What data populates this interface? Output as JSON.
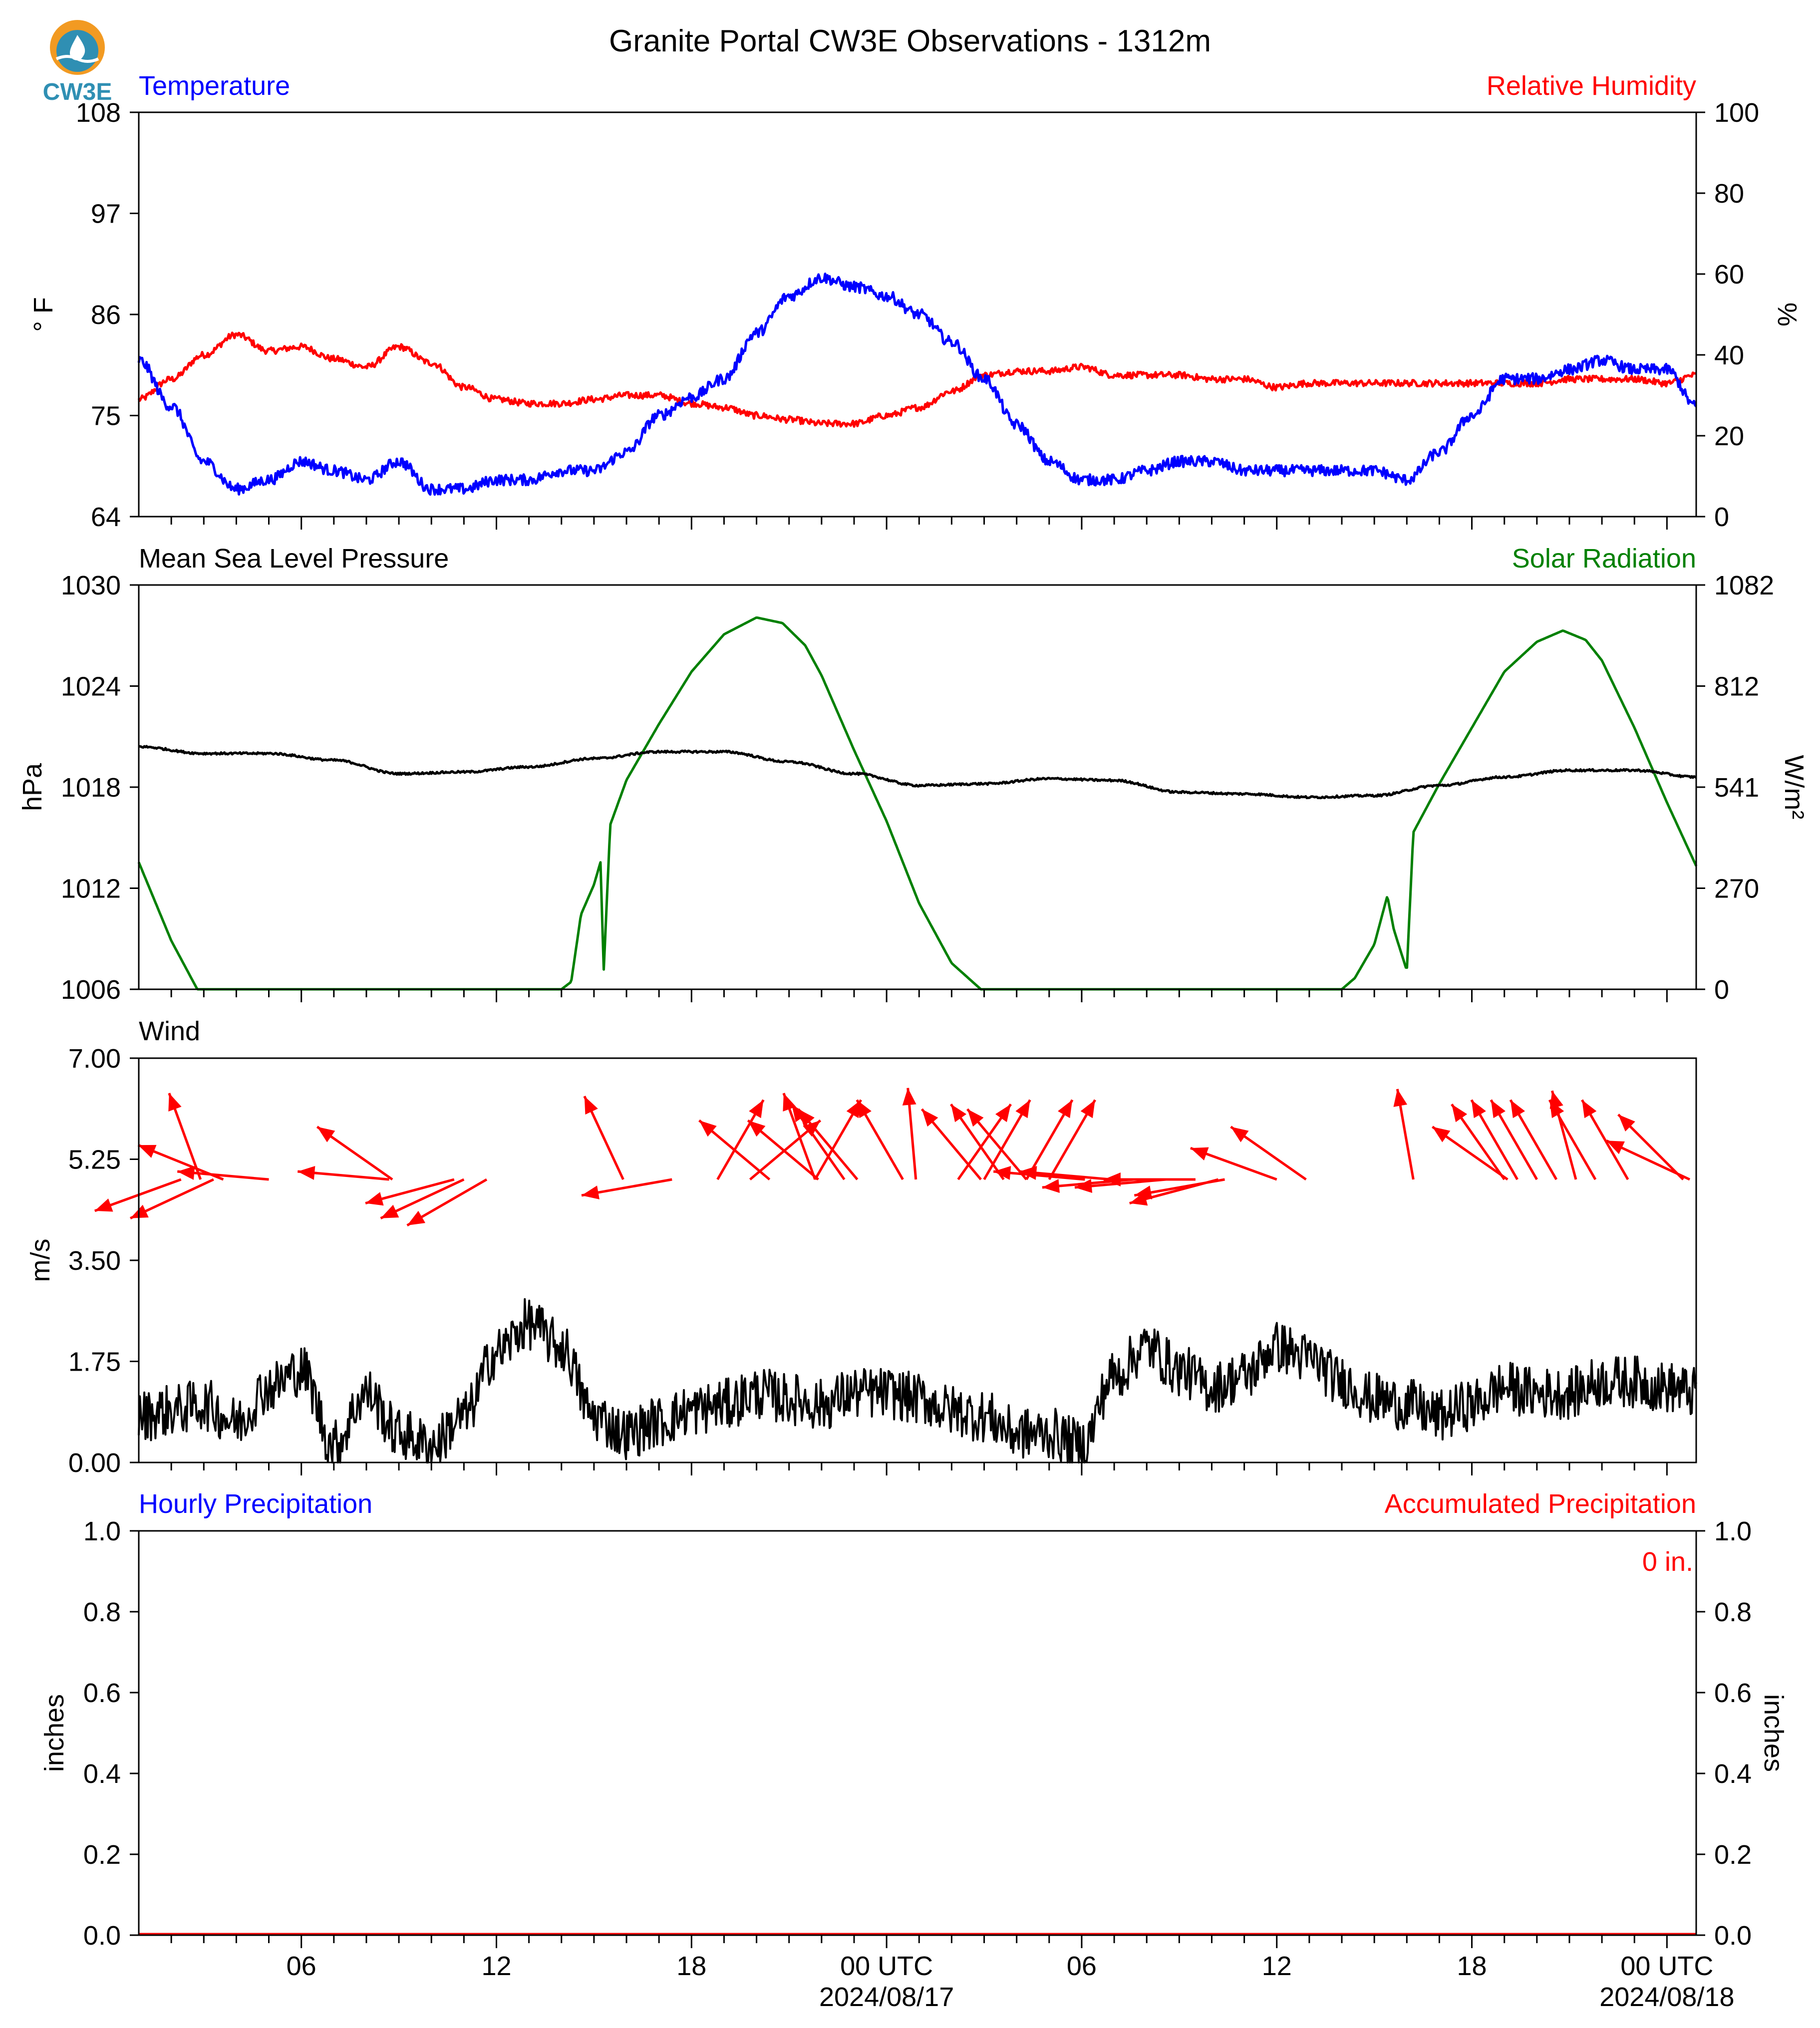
{
  "title": "Granite Portal CW3E Observations - 1312m",
  "logo": {
    "text": "CW3E",
    "color": "#2f8fb3",
    "accent": "#f29a22"
  },
  "colors": {
    "temperature": "#0000ff",
    "humidity": "#ff0000",
    "pressure": "#000000",
    "solar": "#008000",
    "wind": "#ff0000",
    "windspeed": "#000000",
    "accum": "#ff0000"
  },
  "time_axis": {
    "tick_labels": [
      "06",
      "12",
      "18",
      "00 UTC",
      "06",
      "12",
      "18",
      "00 UTC"
    ],
    "tick_hours": [
      6,
      12,
      18,
      24,
      30,
      36,
      42,
      48
    ],
    "date_labels": [
      "2024/08/17",
      "2024/08/18"
    ],
    "range_hours": [
      1,
      48.9
    ]
  },
  "panels": {
    "temp": {
      "left_title": "Temperature",
      "right_title": "Relative Humidity",
      "left_unit": "° F",
      "right_unit": "%",
      "left_ticks": [
        "108",
        "97",
        "86",
        "75",
        "64"
      ],
      "right_ticks": [
        "100",
        "80",
        "60",
        "40",
        "20",
        "0"
      ]
    },
    "pressure": {
      "left_title": "Mean Sea Level Pressure",
      "right_title": "Solar Radiation",
      "left_unit": "hPa",
      "right_unit": "W/m²",
      "left_ticks": [
        "1030",
        "1024",
        "1018",
        "1012",
        "1006"
      ],
      "right_ticks": [
        "1082",
        "812",
        "541",
        "270",
        "0"
      ]
    },
    "wind": {
      "left_title": "Wind",
      "left_unit": "m/s",
      "left_ticks": [
        "7.00",
        "5.25",
        "3.50",
        "1.75",
        "0.00"
      ]
    },
    "precip": {
      "left_title": "Hourly Precipitation",
      "right_title": "Accumulated Precipitation",
      "left_unit": "inches",
      "right_unit": "inches",
      "left_ticks": [
        "1.0",
        "0.8",
        "0.6",
        "0.4",
        "0.2",
        "0.0"
      ],
      "right_ticks": [
        "1.0",
        "0.8",
        "0.6",
        "0.4",
        "0.2",
        "0.0"
      ],
      "total_label": "0 in."
    }
  },
  "chart_data": [
    {
      "type": "line",
      "title": "Temperature",
      "ylabel": "° F",
      "ylim": [
        64,
        108
      ],
      "x": [
        1,
        2,
        3,
        4,
        5,
        6,
        7,
        8,
        9,
        10,
        11,
        12,
        13,
        14,
        15,
        16,
        17,
        18,
        19,
        20,
        21,
        22,
        23,
        24,
        25,
        26,
        27,
        28,
        29,
        30,
        31,
        32,
        33,
        34,
        35,
        36,
        37,
        38,
        39,
        40,
        41,
        42,
        43,
        44,
        45,
        46,
        47,
        48,
        48.9
      ],
      "series": [
        {
          "name": "Temperature",
          "values": [
            81,
            76,
            70,
            67,
            68,
            70,
            69,
            68,
            70,
            67,
            67,
            68,
            68,
            69,
            69,
            71,
            75,
            77,
            79,
            84,
            88,
            90,
            89,
            88,
            86,
            83,
            79,
            74,
            70,
            68,
            68,
            69,
            70,
            70,
            69,
            69,
            69,
            69,
            69,
            68,
            71,
            75,
            79,
            79,
            80,
            81,
            80,
            80,
            76
          ]
        }
      ]
    },
    {
      "type": "line",
      "title": "Relative Humidity",
      "ylabel": "%",
      "ylim": [
        0,
        100
      ],
      "x": [
        1,
        2,
        3,
        4,
        5,
        6,
        7,
        8,
        9,
        10,
        11,
        12,
        13,
        14,
        15,
        16,
        17,
        18,
        19,
        20,
        21,
        22,
        23,
        24,
        25,
        26,
        27,
        28,
        29,
        30,
        31,
        32,
        33,
        34,
        35,
        36,
        37,
        38,
        39,
        40,
        41,
        42,
        43,
        44,
        45,
        46,
        47,
        48,
        48.9
      ],
      "series": [
        {
          "name": "Relative Humidity",
          "values": [
            29,
            34,
            40,
            45,
            41,
            42,
            39,
            37,
            42,
            38,
            32,
            29,
            28,
            28,
            29,
            30,
            30,
            28,
            27,
            25,
            24,
            23,
            23,
            25,
            27,
            31,
            35,
            36,
            36,
            37,
            35,
            35,
            35,
            34,
            34,
            32,
            33,
            33,
            33,
            33,
            33,
            33,
            33,
            33,
            34,
            34,
            34,
            33,
            35
          ]
        }
      ]
    },
    {
      "type": "line",
      "title": "Mean Sea Level Pressure",
      "ylabel": "hPa",
      "ylim": [
        1006,
        1030
      ],
      "x": [
        1,
        3,
        5,
        7,
        9,
        11,
        13,
        15,
        17,
        19,
        21,
        23,
        25,
        27,
        29,
        31,
        33,
        35,
        37,
        39,
        41,
        43,
        45,
        47,
        48.9
      ],
      "series": [
        {
          "name": "Mean Sea Level Pressure",
          "values": [
            1020.4,
            1020.0,
            1020.0,
            1019.6,
            1018.8,
            1018.9,
            1019.2,
            1019.7,
            1020.1,
            1020.1,
            1019.5,
            1018.8,
            1018.1,
            1018.2,
            1018.5,
            1018.4,
            1017.7,
            1017.6,
            1017.4,
            1017.5,
            1018.1,
            1018.6,
            1019.0,
            1019.0,
            1018.6
          ]
        }
      ]
    },
    {
      "type": "line",
      "title": "Solar Radiation",
      "ylabel": "W/m²",
      "ylim": [
        0,
        1082
      ],
      "x": [
        1,
        2,
        2.8,
        14,
        14.3,
        14.6,
        15.0,
        15.2,
        15.3,
        15.5,
        16,
        17,
        18,
        19,
        20,
        20.8,
        21.5,
        22,
        23,
        24,
        25,
        26,
        26.9,
        38,
        38.4,
        39,
        39.4,
        39.6,
        40,
        40.2,
        41,
        42,
        43,
        44,
        44.8,
        45.5,
        46,
        47,
        48,
        48.9
      ],
      "series": [
        {
          "name": "Solar Radiation",
          "values": [
            340,
            130,
            0,
            0,
            20,
            200,
            280,
            340,
            50,
            440,
            560,
            710,
            850,
            950,
            995,
            980,
            920,
            840,
            640,
            450,
            230,
            70,
            0,
            0,
            30,
            120,
            250,
            160,
            50,
            420,
            550,
            700,
            850,
            930,
            960,
            935,
            880,
            700,
            500,
            330
          ]
        }
      ]
    },
    {
      "type": "line",
      "title": "Wind",
      "ylabel": "m/s",
      "ylim": [
        0,
        7
      ],
      "x": [
        1,
        2,
        3,
        4,
        5,
        6,
        7,
        8,
        9,
        10,
        11,
        12,
        13,
        14,
        15,
        16,
        17,
        18,
        19,
        20,
        21,
        22,
        23,
        24,
        25,
        26,
        27,
        28,
        29,
        30,
        31,
        32,
        33,
        34,
        35,
        36,
        37,
        38,
        39,
        40,
        41,
        42,
        43,
        44,
        45,
        46,
        47,
        48,
        48.9
      ],
      "series": [
        {
          "name": "Wind speed",
          "values": [
            0.8,
            0.9,
            1.0,
            0.7,
            1.3,
            1.6,
            0.3,
            1.2,
            0.5,
            0.3,
            0.8,
            1.9,
            2.4,
            2.0,
            0.8,
            0.5,
            0.7,
            0.9,
            1.0,
            1.2,
            1.1,
            1.0,
            1.2,
            1.2,
            1.1,
            0.9,
            0.8,
            0.5,
            0.5,
            0.3,
            1.5,
            2.0,
            1.6,
            1.3,
            1.5,
            2.0,
            1.8,
            1.4,
            1.1,
            1.0,
            0.8,
            1.0,
            1.3,
            1.2,
            1.2,
            1.4,
            1.4,
            1.3,
            1.2
          ]
        }
      ],
      "arrows": [
        {
          "x": 2.9,
          "dir_deg": 160
        },
        {
          "x": 3.6,
          "dir_deg": 112
        },
        {
          "x": 2.3,
          "dir_deg": 70
        },
        {
          "x": 3.3,
          "dir_deg": 65
        },
        {
          "x": 5.0,
          "dir_deg": 95
        },
        {
          "x": 8.8,
          "dir_deg": 125
        },
        {
          "x": 8.7,
          "dir_deg": 95
        },
        {
          "x": 10.7,
          "dir_deg": 75
        },
        {
          "x": 11.0,
          "dir_deg": 65
        },
        {
          "x": 11.7,
          "dir_deg": 60
        },
        {
          "x": 15.9,
          "dir_deg": 155
        },
        {
          "x": 17.4,
          "dir_deg": 80
        },
        {
          "x": 18.8,
          "dir_deg": 210
        },
        {
          "x": 19.8,
          "dir_deg": 230
        },
        {
          "x": 21.8,
          "dir_deg": 210
        },
        {
          "x": 20.4,
          "dir_deg": 130
        },
        {
          "x": 21.9,
          "dir_deg": 130
        },
        {
          "x": 21.8,
          "dir_deg": 160
        },
        {
          "x": 22.7,
          "dir_deg": 145
        },
        {
          "x": 24.5,
          "dir_deg": 150
        },
        {
          "x": 23.1,
          "dir_deg": 140
        },
        {
          "x": 24.9,
          "dir_deg": 175
        },
        {
          "x": 26.2,
          "dir_deg": 215
        },
        {
          "x": 27.0,
          "dir_deg": 210
        },
        {
          "x": 28.3,
          "dir_deg": 210
        },
        {
          "x": 29.0,
          "dir_deg": 210
        },
        {
          "x": 27.6,
          "dir_deg": 145
        },
        {
          "x": 28.3,
          "dir_deg": 140
        },
        {
          "x": 26.9,
          "dir_deg": 140
        },
        {
          "x": 30.1,
          "dir_deg": 95
        },
        {
          "x": 30.9,
          "dir_deg": 95
        },
        {
          "x": 31.6,
          "dir_deg": 85
        },
        {
          "x": 32.6,
          "dir_deg": 85
        },
        {
          "x": 33.5,
          "dir_deg": 90
        },
        {
          "x": 34.2,
          "dir_deg": 75
        },
        {
          "x": 34.4,
          "dir_deg": 80
        },
        {
          "x": 36.0,
          "dir_deg": 110
        },
        {
          "x": 36.9,
          "dir_deg": 125
        },
        {
          "x": 40.2,
          "dir_deg": 170
        },
        {
          "x": 43.0,
          "dir_deg": 145
        },
        {
          "x": 43.4,
          "dir_deg": 150
        },
        {
          "x": 43.1,
          "dir_deg": 125
        },
        {
          "x": 44.0,
          "dir_deg": 150
        },
        {
          "x": 44.6,
          "dir_deg": 150
        },
        {
          "x": 45.2,
          "dir_deg": 165
        },
        {
          "x": 45.8,
          "dir_deg": 150
        },
        {
          "x": 46.8,
          "dir_deg": 150
        },
        {
          "x": 48.5,
          "dir_deg": 135
        },
        {
          "x": 48.7,
          "dir_deg": 115
        }
      ]
    },
    {
      "type": "line",
      "title": "Hourly Precipitation",
      "ylabel": "inches",
      "ylim": [
        0,
        1
      ],
      "x": [
        1,
        48.9
      ],
      "series": [
        {
          "name": "Hourly Precipitation",
          "values": [
            0,
            0
          ]
        },
        {
          "name": "Accumulated Precipitation",
          "values": [
            0,
            0
          ]
        }
      ]
    }
  ]
}
